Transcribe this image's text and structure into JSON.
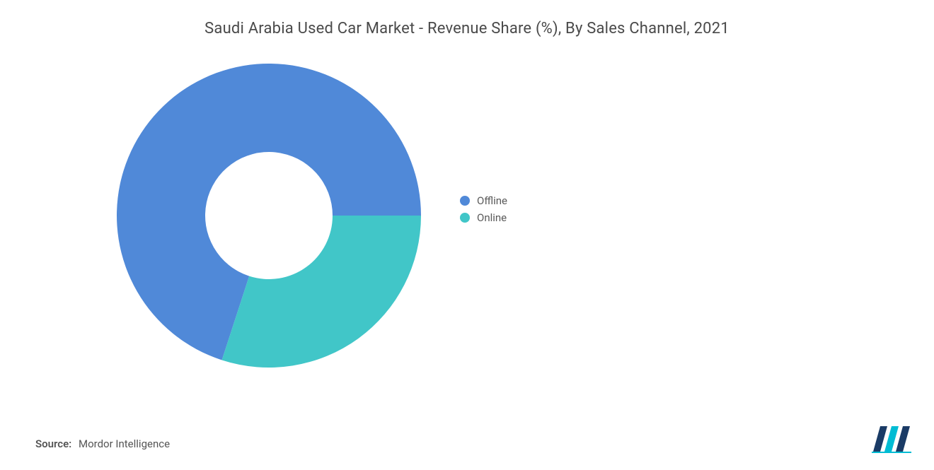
{
  "title": "Saudi Arabia Used Car Market - Revenue Share (%), By Sales Channel, 2021",
  "chart": {
    "type": "donut",
    "background_color": "#ffffff",
    "outer_radius": 215,
    "inner_radius": 90,
    "slices": [
      {
        "label": "Offline",
        "value": 70,
        "color": "#5089d8"
      },
      {
        "label": "Online",
        "value": 30,
        "color": "#41c6c8"
      }
    ],
    "start_angle_deg_from_right_ccw": 0
  },
  "legend": {
    "items": [
      {
        "label": "Offline",
        "color": "#5089d8"
      },
      {
        "label": "Online",
        "color": "#41c6c8"
      }
    ],
    "fontsize": 15,
    "text_color": "#5a5a5a"
  },
  "source": {
    "label": "Source:",
    "value": "Mordor Intelligence",
    "text_color": "#555555",
    "fontsize": 15
  },
  "logo": {
    "bar_colors": [
      "#1a3b66",
      "#00bcd4",
      "#1a3b66"
    ],
    "accent_color": "#00bcd4"
  },
  "typography": {
    "title_fontsize": 22,
    "title_color": "#4a4a4a",
    "font_family": "sans-serif"
  }
}
